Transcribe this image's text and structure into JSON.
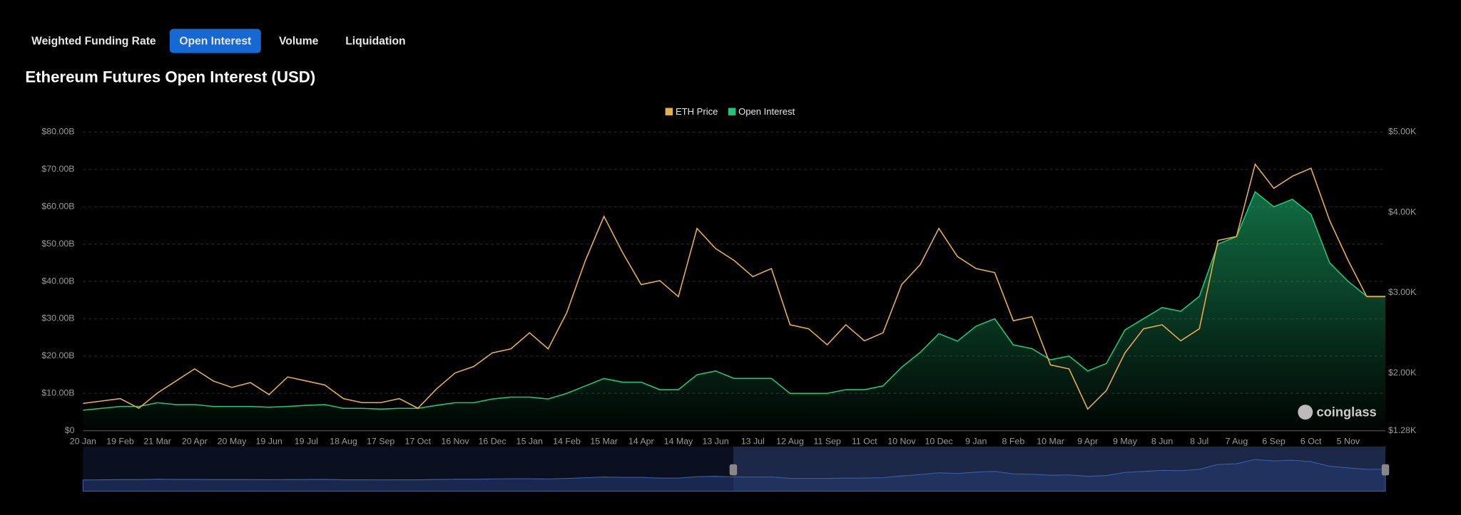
{
  "tabs": [
    "Weighted Funding Rate",
    "Open Interest",
    "Volume",
    "Liquidation"
  ],
  "active_tab": 1,
  "watermark": "coinglass",
  "chart_data": {
    "type": "line",
    "title": "Ethereum Futures Open Interest (USD)",
    "legend": "top",
    "grid": true,
    "navigator": true,
    "categories": [
      "20 Jan",
      null,
      "19 Feb",
      null,
      "21 Mar",
      null,
      "20 Apr",
      null,
      "20 May",
      null,
      "19 Jun",
      null,
      "19 Jul",
      null,
      "18 Aug",
      null,
      "17 Sep",
      null,
      "17 Oct",
      null,
      "16 Nov",
      null,
      "16 Dec",
      null,
      "15 Jan",
      null,
      "14 Feb",
      null,
      "15 Mar",
      null,
      "14 Apr",
      null,
      "14 May",
      null,
      "13 Jun",
      null,
      "13 Jul",
      null,
      "12 Aug",
      null,
      "11 Sep",
      null,
      "11 Oct",
      null,
      "10 Nov",
      null,
      "10 Dec",
      null,
      "9 Jan",
      null,
      "8 Feb",
      null,
      "10 Mar",
      null,
      "9 Apr",
      null,
      "9 May",
      null,
      "8 Jun",
      null,
      "8 Jul",
      null,
      "7 Aug",
      null,
      "6 Sep",
      null,
      "6 Oct",
      null,
      "5 Nov",
      null,
      null
    ],
    "series": [
      {
        "name": "ETH Price",
        "color": "#e9b04a",
        "axis": "y2",
        "values": [
          1620,
          1650,
          1680,
          1560,
          1750,
          1900,
          2050,
          1900,
          1820,
          1880,
          1730,
          1950,
          1900,
          1850,
          1680,
          1630,
          1630,
          1680,
          1560,
          1800,
          2000,
          2080,
          2250,
          2300,
          2500,
          2300,
          2750,
          3400,
          3950,
          3500,
          3100,
          3150,
          2950,
          3800,
          3550,
          3400,
          3200,
          3300,
          2600,
          2550,
          2350,
          2600,
          2400,
          2500,
          3100,
          3350,
          3800,
          3450,
          3300,
          3250,
          2650,
          2700,
          2100,
          2050,
          1550,
          1780,
          2250,
          2550,
          2600,
          2400,
          2550,
          3650,
          3700,
          4600,
          4300,
          4450,
          4550,
          3900,
          3400,
          2950,
          2950
        ]
      },
      {
        "name": "Open Interest",
        "color": "#1fc77a",
        "axis": "y",
        "area": true,
        "values": [
          5500000000.0,
          6000000000.0,
          6500000000.0,
          6500000000.0,
          7500000000.0,
          7000000000.0,
          7000000000.0,
          6500000000.0,
          6500000000.0,
          6500000000.0,
          6300000000.0,
          6500000000.0,
          6800000000.0,
          7000000000.0,
          6000000000.0,
          6000000000.0,
          5800000000.0,
          6000000000.0,
          6000000000.0,
          6800000000.0,
          7500000000.0,
          7500000000.0,
          8500000000.0,
          9000000000.0,
          9000000000.0,
          8500000000.0,
          10000000000.0,
          12000000000.0,
          14000000000.0,
          13000000000.0,
          13000000000.0,
          11000000000.0,
          11000000000.0,
          15000000000.0,
          16000000000.0,
          14000000000.0,
          14000000000.0,
          14000000000.0,
          10000000000.0,
          10000000000.0,
          10000000000.0,
          11000000000.0,
          11000000000.0,
          12000000000.0,
          17000000000.0,
          21000000000.0,
          26000000000.0,
          24000000000.0,
          28000000000.0,
          30000000000.0,
          23000000000.0,
          22000000000.0,
          19000000000.0,
          20000000000.0,
          16000000000.0,
          18000000000.0,
          27000000000.0,
          30000000000.0,
          33000000000.0,
          32000000000.0,
          36000000000.0,
          50000000000.0,
          52000000000.0,
          64000000000.0,
          60000000000.0,
          62000000000.0,
          58000000000.0,
          45000000000.0,
          40000000000.0,
          36000000000.0,
          36000000000.0
        ]
      }
    ],
    "ylim": [
      0,
      80000000000
    ],
    "yticks": [
      {
        "value": 0,
        "label": "$0"
      },
      {
        "value": 10000000000,
        "label": "$10.00B"
      },
      {
        "value": 20000000000,
        "label": "$20.00B"
      },
      {
        "value": 30000000000,
        "label": "$30.00B"
      },
      {
        "value": 40000000000,
        "label": "$40.00B"
      },
      {
        "value": 50000000000,
        "label": "$50.00B"
      },
      {
        "value": 60000000000,
        "label": "$60.00B"
      },
      {
        "value": 70000000000,
        "label": "$70.00B"
      },
      {
        "value": 80000000000,
        "label": "$80.00B"
      }
    ],
    "y2lim": [
      1280,
      5000
    ],
    "y2ticks": [
      {
        "value": 1280,
        "label": "$1.28K"
      },
      {
        "value": 2000,
        "label": "$2.00K"
      },
      {
        "value": 3000,
        "label": "$3.00K"
      },
      {
        "value": 4000,
        "label": "$4.00K"
      },
      {
        "value": 5000,
        "label": "$5.00K"
      }
    ]
  }
}
